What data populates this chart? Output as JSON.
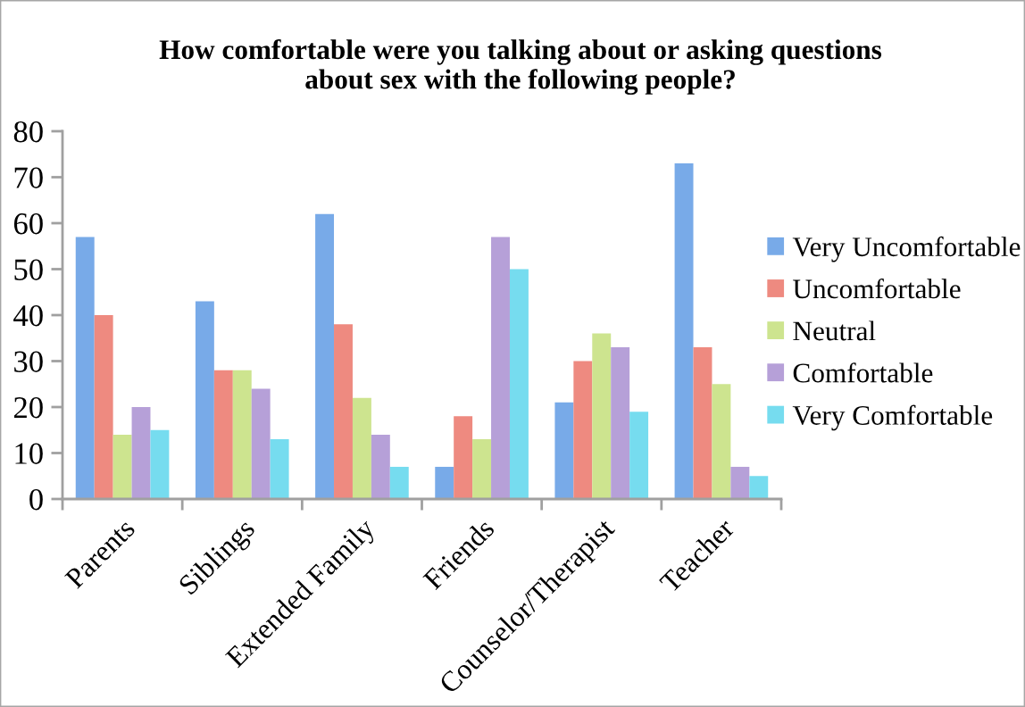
{
  "chart_data": {
    "type": "bar",
    "title": "How comfortable were you talking about or asking questions\nabout sex with the following people?",
    "categories": [
      "Parents",
      "Siblings",
      "Extended Family",
      "Friends",
      "Counselor/Therapist",
      "Teacher"
    ],
    "series": [
      {
        "name": "Very Uncomfortable",
        "color": "#78aae8",
        "values": [
          57,
          43,
          62,
          7,
          21,
          73
        ]
      },
      {
        "name": "Uncomfortable",
        "color": "#ee8a80",
        "values": [
          40,
          28,
          38,
          18,
          30,
          33
        ]
      },
      {
        "name": "Neutral",
        "color": "#cde48f",
        "values": [
          14,
          28,
          22,
          13,
          36,
          25
        ]
      },
      {
        "name": "Comfortable",
        "color": "#b6a0d8",
        "values": [
          20,
          24,
          14,
          57,
          33,
          7
        ]
      },
      {
        "name": "Very Comfortable",
        "color": "#76dcef",
        "values": [
          15,
          13,
          7,
          50,
          19,
          5
        ]
      }
    ],
    "ylim": [
      0,
      80
    ],
    "yticks": [
      0,
      10,
      20,
      30,
      40,
      50,
      60,
      70,
      80
    ],
    "grid": false,
    "legend": "right"
  }
}
